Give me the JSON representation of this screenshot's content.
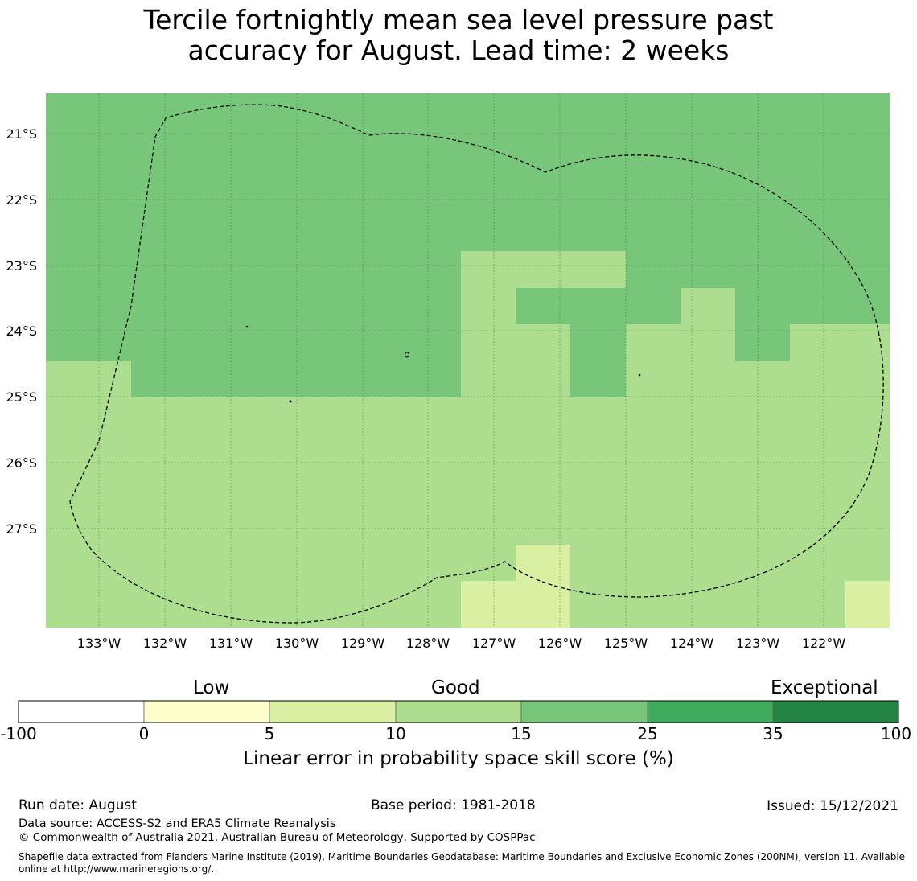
{
  "title": {
    "line1": "Tercile fortnightly mean sea level pressure past",
    "line2": "accuracy for August. Lead time: 2 weeks"
  },
  "map": {
    "lat_labels": [
      "21°S",
      "22°S",
      "23°S",
      "24°S",
      "25°S",
      "26°S",
      "27°S"
    ],
    "lon_labels": [
      "133°W",
      "132°W",
      "131°W",
      "130°W",
      "129°W",
      "128°W",
      "127°W",
      "126°W",
      "125°W",
      "124°W",
      "123°W",
      "122°W"
    ],
    "colors": {
      "band_15_25": "#78c679",
      "band_10_15": "#addd8e",
      "band_5_10": "#d9f0a3"
    }
  },
  "colorbar": {
    "words": [
      "Low",
      "Good",
      "Exceptional"
    ],
    "ticks": [
      "-100",
      "0",
      "5",
      "10",
      "15",
      "25",
      "35",
      "100"
    ],
    "colors": [
      "#ffffff",
      "#ffffcc",
      "#d9f0a3",
      "#addd8e",
      "#78c679",
      "#41ab5d",
      "#238443"
    ],
    "label": "Linear error in probability space skill score (%)"
  },
  "footer": {
    "run_date": "Run date: August",
    "base_period": "Base period: 1981-2018",
    "issued": "Issued: 15/12/2021",
    "data_source": "Data source: ACCESS-S2 and ERA5 Climate Reanalysis",
    "copyright": "© Commonwealth of Australia 2021, Australian Bureau of Meteorology, Supported by COSPPac",
    "shapefile_line1": "Shapefile data extracted from Flanders Marine Institute (2019), Maritime Boundaries Geodatabase: Maritime Boundaries and Exclusive Economic Zones (200NM), version 11. Available",
    "shapefile_line2": "online at http://www.marineregions.org/."
  }
}
